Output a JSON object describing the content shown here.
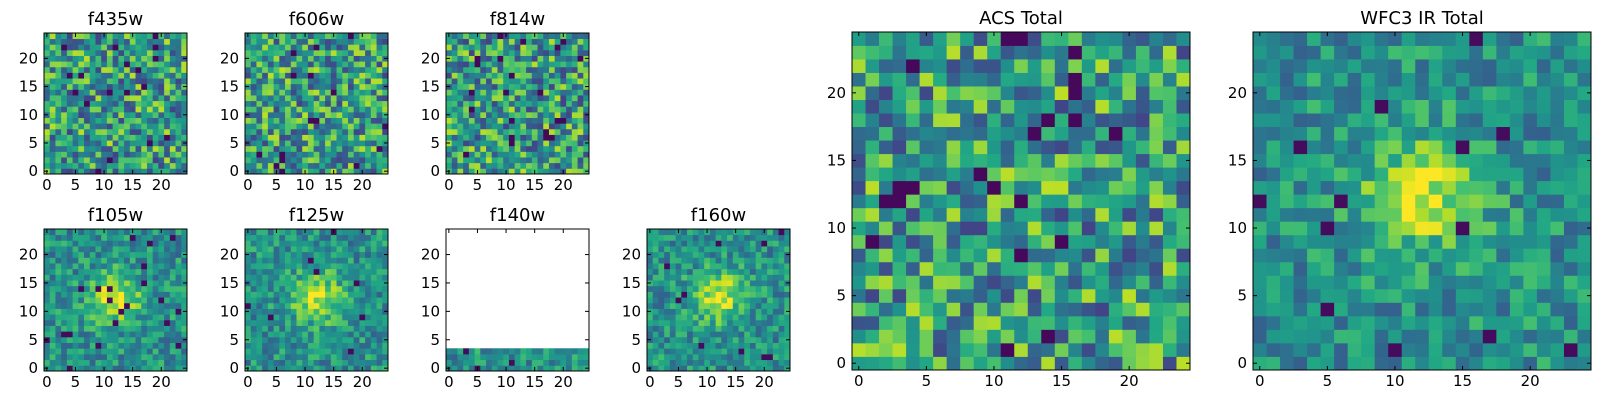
{
  "chart_data": [
    {
      "type": "heatmap",
      "title": "f435w",
      "xticks": [
        "0",
        "5",
        "10",
        "15",
        "20"
      ],
      "yticks": [
        "0",
        "5",
        "10",
        "15",
        "20"
      ],
      "xlim": [
        -0.5,
        24.5
      ],
      "ylim": [
        -0.5,
        24.5
      ],
      "colormap": "viridis",
      "pattern": "noise",
      "seed": 11
    },
    {
      "type": "heatmap",
      "title": "f606w",
      "xticks": [
        "0",
        "5",
        "10",
        "15",
        "20"
      ],
      "yticks": [
        "0",
        "5",
        "10",
        "15",
        "20"
      ],
      "xlim": [
        -0.5,
        24.5
      ],
      "ylim": [
        -0.5,
        24.5
      ],
      "colormap": "viridis",
      "pattern": "noise",
      "seed": 23
    },
    {
      "type": "heatmap",
      "title": "f814w",
      "xticks": [
        "0",
        "5",
        "10",
        "15",
        "20"
      ],
      "yticks": [
        "0",
        "5",
        "10",
        "15",
        "20"
      ],
      "xlim": [
        -0.5,
        24.5
      ],
      "ylim": [
        -0.5,
        24.5
      ],
      "colormap": "viridis",
      "pattern": "noise",
      "seed": 37
    },
    {
      "type": "heatmap",
      "title": "f105w",
      "xticks": [
        "0",
        "5",
        "10",
        "15",
        "20"
      ],
      "yticks": [
        "0",
        "5",
        "10",
        "15",
        "20"
      ],
      "xlim": [
        -0.5,
        24.5
      ],
      "ylim": [
        -0.5,
        24.5
      ],
      "colormap": "viridis",
      "pattern": "source",
      "seed": 41
    },
    {
      "type": "heatmap",
      "title": "f125w",
      "xticks": [
        "0",
        "5",
        "10",
        "15",
        "20"
      ],
      "yticks": [
        "0",
        "5",
        "10",
        "15",
        "20"
      ],
      "xlim": [
        -0.5,
        24.5
      ],
      "ylim": [
        -0.5,
        24.5
      ],
      "colormap": "viridis",
      "pattern": "source",
      "seed": 53
    },
    {
      "type": "heatmap",
      "title": "f140w",
      "xticks": [
        "0",
        "5",
        "10",
        "15",
        "20"
      ],
      "yticks": [
        "0",
        "5",
        "10",
        "15",
        "20"
      ],
      "xlim": [
        -0.5,
        24.5
      ],
      "ylim": [
        -0.5,
        24.5
      ],
      "colormap": "viridis",
      "pattern": "partial",
      "rows_filled": 4,
      "seed": 67
    },
    {
      "type": "heatmap",
      "title": "f160w",
      "xticks": [
        "0",
        "5",
        "10",
        "15",
        "20"
      ],
      "yticks": [
        "0",
        "5",
        "10",
        "15",
        "20"
      ],
      "xlim": [
        -0.5,
        24.5
      ],
      "ylim": [
        -0.5,
        24.5
      ],
      "colormap": "viridis",
      "pattern": "source",
      "seed": 71
    },
    {
      "type": "heatmap",
      "title": "ACS Total",
      "xticks": [
        "0",
        "5",
        "10",
        "15",
        "20"
      ],
      "yticks": [
        "0",
        "5",
        "10",
        "15",
        "20"
      ],
      "xlim": [
        -0.5,
        24.5
      ],
      "ylim": [
        -0.5,
        24.5
      ],
      "colormap": "viridis",
      "pattern": "noise",
      "seed": 83
    },
    {
      "type": "heatmap",
      "title": "WFC3 IR Total",
      "xticks": [
        "0",
        "5",
        "10",
        "15",
        "20"
      ],
      "yticks": [
        "0",
        "5",
        "10",
        "15",
        "20"
      ],
      "xlim": [
        -0.5,
        24.5
      ],
      "ylim": [
        -0.5,
        24.5
      ],
      "colormap": "viridis",
      "pattern": "source",
      "seed": 97
    }
  ]
}
